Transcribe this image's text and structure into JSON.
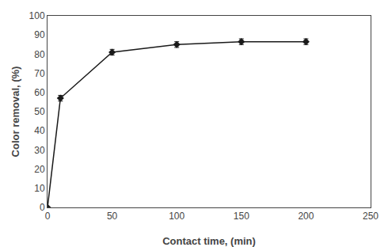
{
  "chart_data": {
    "type": "line",
    "x": [
      0,
      10,
      50,
      100,
      150,
      200
    ],
    "values": [
      0,
      57,
      81,
      85,
      86.5,
      86.5
    ],
    "yerr": [
      0,
      1.5,
      1.5,
      1.5,
      1.5,
      1.5
    ],
    "xlabel": "Contact time, (min)",
    "ylabel": "Color removal, (%)",
    "xlim": [
      0,
      250
    ],
    "ylim": [
      0,
      100
    ],
    "xticks": [
      0,
      50,
      100,
      150,
      200,
      250
    ],
    "yticks": [
      0,
      10,
      20,
      30,
      40,
      50,
      60,
      70,
      80,
      90,
      100
    ],
    "color": "#1a1a1a",
    "marker": "diamond",
    "grid": false
  }
}
